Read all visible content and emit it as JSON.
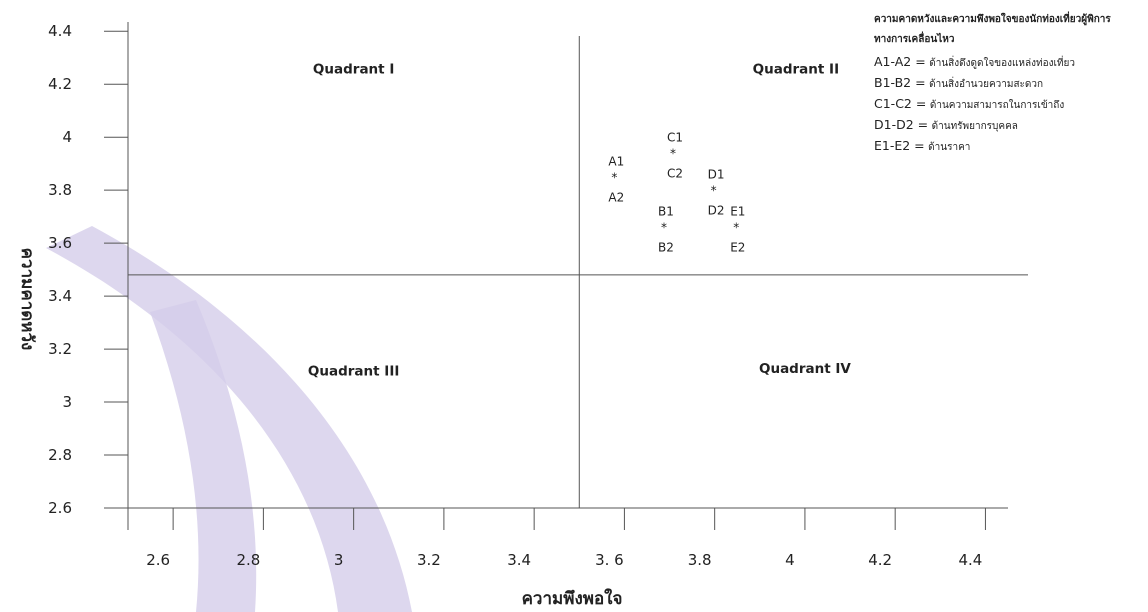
{
  "chart_data": {
    "type": "scatter",
    "title": "",
    "xlabel": "ความพึงพอใจ",
    "ylabel": "ความคาดหวัง",
    "xlim": [
      2.5,
      4.45
    ],
    "ylim": [
      2.6,
      4.45
    ],
    "x_ticks": [
      {
        "value": 2.6,
        "label": "2.6"
      },
      {
        "value": 2.8,
        "label": "2.8"
      },
      {
        "value": 3.0,
        "label": "3"
      },
      {
        "value": 3.2,
        "label": "3.2"
      },
      {
        "value": 3.4,
        "label": "3.4"
      },
      {
        "value": 3.6,
        "label": "3. 6"
      },
      {
        "value": 3.8,
        "label": "3.8"
      },
      {
        "value": 4.0,
        "label": "4"
      },
      {
        "value": 4.2,
        "label": "4.2"
      },
      {
        "value": 4.4,
        "label": "4.4"
      }
    ],
    "y_ticks": [
      {
        "value": 2.6,
        "label": "2.6"
      },
      {
        "value": 2.8,
        "label": "2.8"
      },
      {
        "value": 3.0,
        "label": "3"
      },
      {
        "value": 3.2,
        "label": "3.2"
      },
      {
        "value": 3.4,
        "label": "3.4"
      },
      {
        "value": 3.6,
        "label": "3.6"
      },
      {
        "value": 3.8,
        "label": "3.8"
      },
      {
        "value": 4.0,
        "label": "4"
      },
      {
        "value": 4.2,
        "label": "4.2"
      },
      {
        "value": 4.4,
        "label": "4.4"
      }
    ],
    "divider_x": 3.5,
    "divider_y": 3.48,
    "quadrants": [
      {
        "label": "Quadrant I",
        "x": 3.0,
        "y": 4.24
      },
      {
        "label": "Quadrant II",
        "x": 3.98,
        "y": 4.24
      },
      {
        "label": "Quadrant III",
        "x": 3.0,
        "y": 3.1
      },
      {
        "label": "Quadrant IV",
        "x": 4.0,
        "y": 3.11
      }
    ],
    "points": [
      {
        "top": "A1",
        "bottom": "A2",
        "x": 3.58,
        "y": 3.86
      },
      {
        "top": "B1",
        "bottom": "B2",
        "x": 3.69,
        "y": 3.67
      },
      {
        "top": "C1",
        "bottom": "C2",
        "x": 3.71,
        "y": 3.95
      },
      {
        "top": "D1",
        "bottom": "D2",
        "x": 3.8,
        "y": 3.81
      },
      {
        "top": "E1",
        "bottom": "E2",
        "x": 3.85,
        "y": 3.67
      }
    ],
    "legend": {
      "title": "ความคาดหวังและความพึงพอใจของนักท่องเที่ยวผู้พิการ\nทางการเคลื่อนไหว",
      "placement": "top-right",
      "items": [
        {
          "code": "A1-A2 =",
          "desc": "ด้านสิ่งดึงดูดใจของแหล่งท่องเที่ยว"
        },
        {
          "code": "B1-B2 =",
          "desc": "ด้านสิ่งอำนวยความสะดวก"
        },
        {
          "code": "C1-C2 =",
          "desc": "ด้านความสามารถในการเข้าถึง"
        },
        {
          "code": "D1-D2 =",
          "desc": "ด้านทรัพยากรบุคคล"
        },
        {
          "code": "E1-E2 =",
          "desc": "ด้านราคา"
        }
      ]
    },
    "grid": false,
    "watermark_color": "#d4cdea",
    "axis_color": "#555555"
  }
}
